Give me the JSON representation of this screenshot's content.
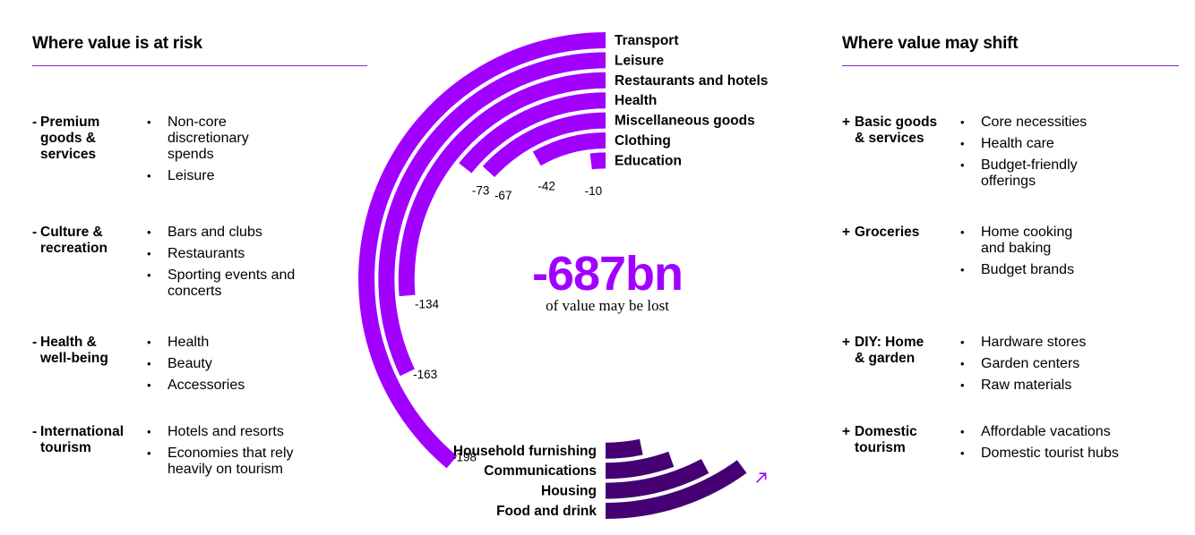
{
  "left_panel": {
    "title": "Where value is at risk",
    "groups": [
      {
        "sign": "-",
        "label_lines": [
          "Premium",
          "goods &",
          "services"
        ],
        "items": [
          [
            "Non-core",
            "discretionary",
            "spends"
          ],
          [
            "Leisure"
          ]
        ]
      },
      {
        "sign": "-",
        "label_lines": [
          "Culture &",
          "recreation"
        ],
        "items": [
          [
            "Bars and clubs"
          ],
          [
            "Restaurants"
          ],
          [
            "Sporting events and",
            "concerts"
          ]
        ]
      },
      {
        "sign": "-",
        "label_lines": [
          "Health &",
          "well-being"
        ],
        "items": [
          [
            "Health"
          ],
          [
            "Beauty"
          ],
          [
            "Accessories"
          ]
        ]
      },
      {
        "sign": "-",
        "label_lines": [
          "International",
          "tourism"
        ],
        "items": [
          [
            "Hotels and resorts"
          ],
          [
            "Economies that rely",
            "heavily on tourism"
          ]
        ]
      }
    ]
  },
  "right_panel": {
    "title": "Where value may shift",
    "groups": [
      {
        "sign": "+",
        "label_lines": [
          "Basic goods",
          "& services"
        ],
        "items": [
          [
            "Core necessities"
          ],
          [
            "Health care"
          ],
          [
            "Budget-friendly",
            "offerings"
          ]
        ]
      },
      {
        "sign": "+",
        "label_lines": [
          "Groceries"
        ],
        "items": [
          [
            "Home cooking",
            "and baking"
          ],
          [
            "Budget brands"
          ]
        ]
      },
      {
        "sign": "+",
        "label_lines": [
          "DIY: Home",
          "& garden"
        ],
        "items": [
          [
            "Hardware stores"
          ],
          [
            "Garden centers"
          ],
          [
            "Raw materials"
          ]
        ]
      },
      {
        "sign": "+",
        "label_lines": [
          "Domestic",
          "tourism"
        ],
        "items": [
          [
            "Affordable vacations"
          ],
          [
            "Domestic tourist hubs"
          ]
        ]
      }
    ]
  },
  "center": {
    "total": "-687bn",
    "subtitle": "of value may be lost"
  },
  "chart_data": {
    "type": "radial-bar",
    "title": "",
    "unit": "",
    "series": [
      {
        "name": "",
        "color": "#a100ff",
        "categories": [
          "Transport",
          "Leisure",
          "Restaurants and hotels",
          "Health",
          "Miscellaneous goods",
          "Clothing",
          "Education"
        ],
        "values": [
          -198,
          -163,
          -134,
          -73,
          -67,
          -42,
          -10
        ],
        "value_labels": [
          "-198",
          "-163",
          "-134",
          "-73",
          "-67",
          "-42",
          "-10"
        ]
      },
      {
        "name": "",
        "color": "#460073",
        "categories": [
          "Household furnishing",
          "Communications",
          "Housing",
          "Food and drink"
        ],
        "direction": "increase",
        "value_labels": []
      }
    ]
  }
}
